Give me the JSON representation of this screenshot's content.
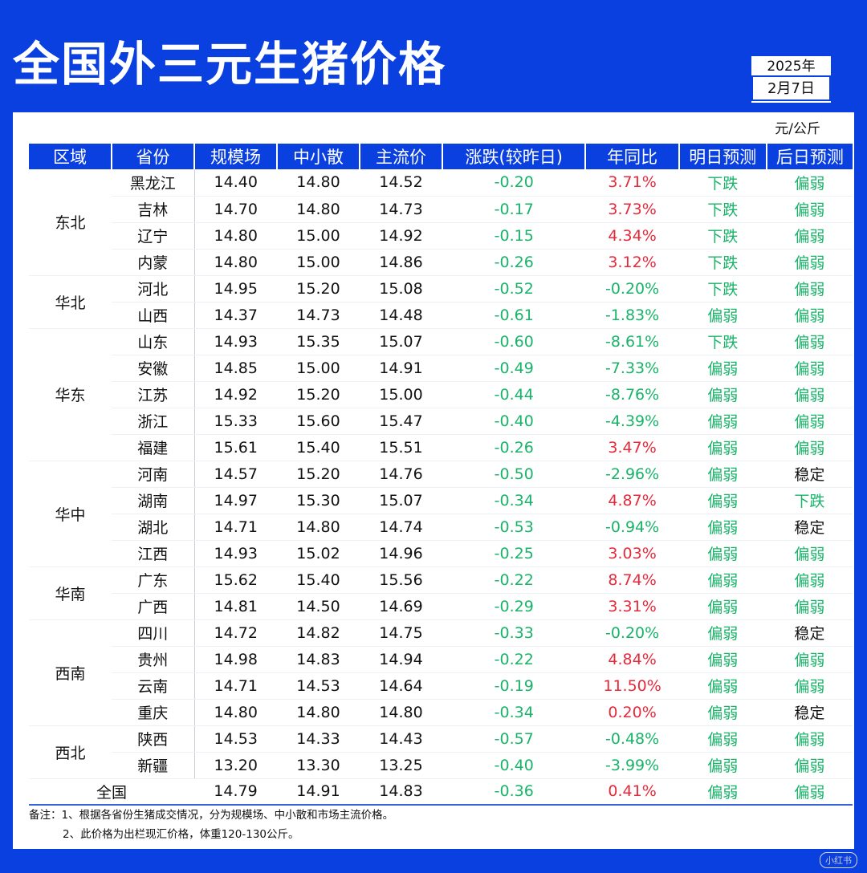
{
  "title": "全国外三元生猪价格",
  "date": {
    "year": "2025年",
    "day": "2月7日"
  },
  "unit": "元/公斤",
  "headers": [
    "区域",
    "省份",
    "规模场",
    "中小散",
    "主流价",
    "涨跌(较昨日)",
    "年同比",
    "明日预测",
    "后日预测"
  ],
  "regions": [
    "东北",
    "华北",
    "华东",
    "华中",
    "华南",
    "西南",
    "西北"
  ],
  "rows": [
    {
      "province": "黑龙江",
      "scale": "14.40",
      "small": "14.80",
      "main": "14.52",
      "change": "-0.20",
      "yoy": "3.71%",
      "tomorrow": "下跌",
      "after": "偏弱"
    },
    {
      "province": "吉林",
      "scale": "14.70",
      "small": "14.80",
      "main": "14.73",
      "change": "-0.17",
      "yoy": "3.73%",
      "tomorrow": "下跌",
      "after": "偏弱"
    },
    {
      "province": "辽宁",
      "scale": "14.80",
      "small": "15.00",
      "main": "14.92",
      "change": "-0.15",
      "yoy": "4.34%",
      "tomorrow": "下跌",
      "after": "偏弱"
    },
    {
      "province": "内蒙",
      "scale": "14.80",
      "small": "15.00",
      "main": "14.86",
      "change": "-0.26",
      "yoy": "3.12%",
      "tomorrow": "下跌",
      "after": "偏弱"
    },
    {
      "province": "河北",
      "scale": "14.95",
      "small": "15.20",
      "main": "15.08",
      "change": "-0.52",
      "yoy": "-0.20%",
      "tomorrow": "下跌",
      "after": "偏弱"
    },
    {
      "province": "山西",
      "scale": "14.37",
      "small": "14.73",
      "main": "14.48",
      "change": "-0.61",
      "yoy": "-1.83%",
      "tomorrow": "偏弱",
      "after": "偏弱"
    },
    {
      "province": "山东",
      "scale": "14.93",
      "small": "15.35",
      "main": "15.07",
      "change": "-0.60",
      "yoy": "-8.61%",
      "tomorrow": "下跌",
      "after": "偏弱"
    },
    {
      "province": "安徽",
      "scale": "14.85",
      "small": "15.00",
      "main": "14.91",
      "change": "-0.49",
      "yoy": "-7.33%",
      "tomorrow": "偏弱",
      "after": "偏弱"
    },
    {
      "province": "江苏",
      "scale": "14.92",
      "small": "15.20",
      "main": "15.00",
      "change": "-0.44",
      "yoy": "-8.76%",
      "tomorrow": "偏弱",
      "after": "偏弱"
    },
    {
      "province": "浙江",
      "scale": "15.33",
      "small": "15.60",
      "main": "15.47",
      "change": "-0.40",
      "yoy": "-4.39%",
      "tomorrow": "偏弱",
      "after": "偏弱"
    },
    {
      "province": "福建",
      "scale": "15.61",
      "small": "15.40",
      "main": "15.51",
      "change": "-0.26",
      "yoy": "3.47%",
      "tomorrow": "偏弱",
      "after": "偏弱"
    },
    {
      "province": "河南",
      "scale": "14.57",
      "small": "15.20",
      "main": "14.76",
      "change": "-0.50",
      "yoy": "-2.96%",
      "tomorrow": "偏弱",
      "after": "稳定"
    },
    {
      "province": "湖南",
      "scale": "14.97",
      "small": "15.30",
      "main": "15.07",
      "change": "-0.34",
      "yoy": "4.87%",
      "tomorrow": "偏弱",
      "after": "下跌"
    },
    {
      "province": "湖北",
      "scale": "14.71",
      "small": "14.80",
      "main": "14.74",
      "change": "-0.53",
      "yoy": "-0.94%",
      "tomorrow": "偏弱",
      "after": "稳定"
    },
    {
      "province": "江西",
      "scale": "14.93",
      "small": "15.02",
      "main": "14.96",
      "change": "-0.25",
      "yoy": "3.03%",
      "tomorrow": "偏弱",
      "after": "偏弱"
    },
    {
      "province": "广东",
      "scale": "15.62",
      "small": "15.40",
      "main": "15.56",
      "change": "-0.22",
      "yoy": "8.74%",
      "tomorrow": "偏弱",
      "after": "偏弱"
    },
    {
      "province": "广西",
      "scale": "14.81",
      "small": "14.50",
      "main": "14.69",
      "change": "-0.29",
      "yoy": "3.31%",
      "tomorrow": "偏弱",
      "after": "偏弱"
    },
    {
      "province": "四川",
      "scale": "14.72",
      "small": "14.82",
      "main": "14.75",
      "change": "-0.33",
      "yoy": "-0.20%",
      "tomorrow": "偏弱",
      "after": "稳定"
    },
    {
      "province": "贵州",
      "scale": "14.98",
      "small": "14.83",
      "main": "14.94",
      "change": "-0.22",
      "yoy": "4.84%",
      "tomorrow": "偏弱",
      "after": "偏弱"
    },
    {
      "province": "云南",
      "scale": "14.71",
      "small": "14.53",
      "main": "14.64",
      "change": "-0.19",
      "yoy": "11.50%",
      "tomorrow": "偏弱",
      "after": "偏弱"
    },
    {
      "province": "重庆",
      "scale": "14.80",
      "small": "14.80",
      "main": "14.80",
      "change": "-0.34",
      "yoy": "0.20%",
      "tomorrow": "偏弱",
      "after": "稳定"
    },
    {
      "province": "陕西",
      "scale": "14.53",
      "small": "14.33",
      "main": "14.43",
      "change": "-0.57",
      "yoy": "-0.48%",
      "tomorrow": "偏弱",
      "after": "偏弱"
    },
    {
      "province": "新疆",
      "scale": "13.20",
      "small": "13.30",
      "main": "13.25",
      "change": "-0.40",
      "yoy": "-3.99%",
      "tomorrow": "偏弱",
      "after": "偏弱"
    }
  ],
  "national": {
    "label": "全国",
    "scale": "14.79",
    "small": "14.91",
    "main": "14.83",
    "change": "-0.36",
    "yoy": "0.41%",
    "tomorrow": "偏弱",
    "after": "偏弱"
  },
  "notes": [
    "备注：1、根据各省份生猪成交情况，分为规模场、中小散和市场主流价格。",
    "2、此价格为出栏现汇价格，体重120-130公斤。"
  ],
  "watermark": "小红书",
  "colors": {
    "brand_blue": "#0a3fe0",
    "up_red": "#e62a3c",
    "down_green": "#19b36a"
  }
}
